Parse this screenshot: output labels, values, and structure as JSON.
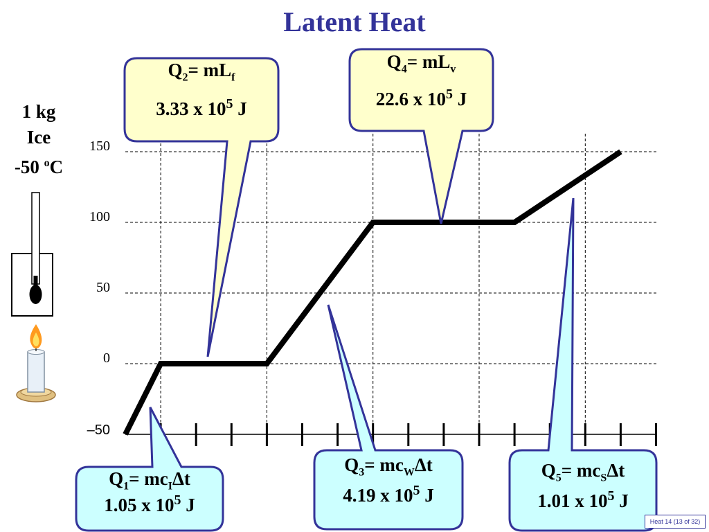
{
  "title": "Latent Heat",
  "sample": {
    "line1": "1 kg",
    "line2": "Ice",
    "temp_prefix": "-50 ",
    "temp_sup": "o",
    "temp_unit": "C"
  },
  "colors": {
    "title": "#333399",
    "callout_yellow": "#FFFFCC",
    "callout_cyan": "#CCFFFF",
    "callout_border": "#333399",
    "curve": "#000000"
  },
  "icons": [
    "thermometer-icon",
    "candle-icon"
  ],
  "callouts": {
    "q1": {
      "q": "Q",
      "qsub": "1",
      "mid": "= mc",
      "csub": "I",
      "tail": "Δt",
      "coef": "1.05 x 10",
      "exp": "5",
      "unit": " J"
    },
    "q2": {
      "q": "Q",
      "qsub": "2",
      "mid": "= mL",
      "csub": "f",
      "tail": "",
      "coef": "3.33 x 10",
      "exp": "5",
      "unit": " J"
    },
    "q3": {
      "q": "Q",
      "qsub": "3",
      "mid": "= mc",
      "csub": "W",
      "tail": "Δt",
      "coef": "4.19 x 10",
      "exp": "5",
      "unit": " J"
    },
    "q4": {
      "q": "Q",
      "qsub": "4",
      "mid": "= mL",
      "csub": "v",
      "tail": "",
      "coef": "22.6 x 10",
      "exp": "5",
      "unit": " J"
    },
    "q5": {
      "q": "Q",
      "qsub": "5",
      "mid": "= mc",
      "csub": "S",
      "tail": "Δt",
      "coef": "1.01 x 10",
      "exp": "5",
      "unit": " J"
    }
  },
  "chart_data": {
    "type": "line",
    "title": "",
    "xlabel": "",
    "ylabel": "",
    "ylim": [
      -50,
      150
    ],
    "yticks": [
      "150",
      "100",
      "50",
      "0",
      "–50"
    ],
    "ytick_values": [
      150,
      100,
      50,
      0,
      -50
    ],
    "grid": true,
    "series": [
      {
        "x": [
          0,
          1,
          4,
          7,
          11,
          14
        ],
        "y": [
          -50,
          0,
          0,
          100,
          100,
          150
        ]
      }
    ]
  },
  "footer": "Heat 14  (13 of 32)"
}
